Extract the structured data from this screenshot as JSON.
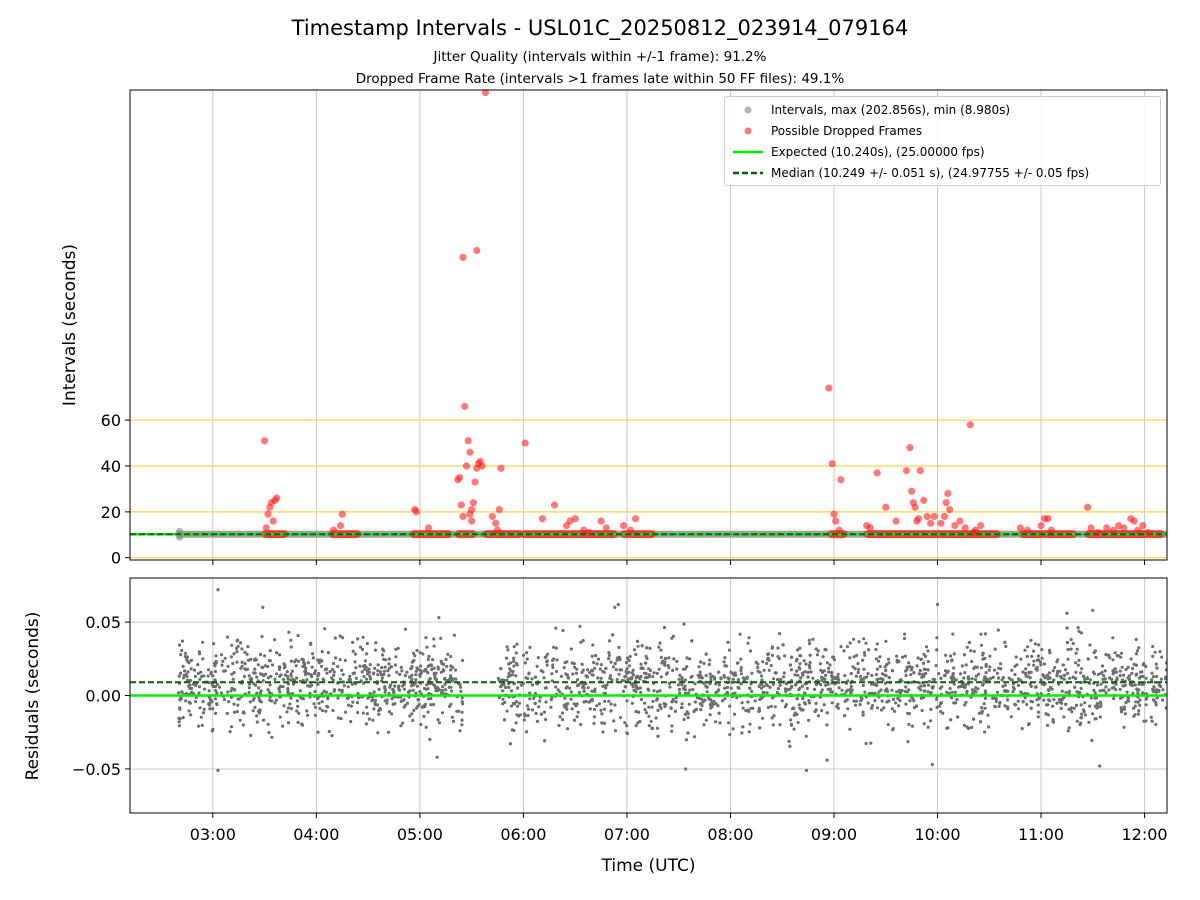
{
  "figure": {
    "title": "Timestamp Intervals - USL01C_20250812_023914_079164",
    "subtitle_1": "Jitter Quality (intervals within +/-1 frame): 91.2%",
    "subtitle_2": "Dropped Frame Rate (intervals >1 frames late within 50 FF files): 49.1%"
  },
  "colors": {
    "intervals": "#808080",
    "dropped": "#ff2020",
    "expected": "#00ee00",
    "median": "#006400",
    "threshold_lines": "#ffd24d",
    "grid": "#c8c8c8",
    "residual_points": "#6e6e6e"
  },
  "chart_data": [
    {
      "type": "scatter",
      "panel": "intervals",
      "ylabel": "Intervals (seconds)",
      "xlabel": "",
      "x_unit": "hours UTC",
      "xlim": [
        "02:12",
        "12:13"
      ],
      "ylim": [
        -1,
        204
      ],
      "yticks": [
        0,
        20,
        40,
        60
      ],
      "xticks": [
        "03:00",
        "04:00",
        "05:00",
        "06:00",
        "07:00",
        "08:00",
        "09:00",
        "10:00",
        "11:00",
        "12:00"
      ],
      "grid": "x",
      "threshold_lines": [
        0,
        20,
        40,
        60
      ],
      "legend_position": "upper right",
      "legend": [
        "Intervals, max (202.856s), min (8.980s)",
        "Possible Dropped Frames",
        "Expected (10.240s), (25.00000 fps)",
        "Median (10.249 +/- 0.051 s), (24.97755 +/- 0.05 fps)"
      ],
      "expected_value": 10.24,
      "median_value": 10.249,
      "interval_band": {
        "x_start": "02:39",
        "x_end": "12:13",
        "y": 10.25
      },
      "dropped_segments": [
        {
          "x_start": "03:30",
          "x_end": "03:42",
          "y": 10.3
        },
        {
          "x_start": "04:09",
          "x_end": "04:24",
          "y": 10.3
        },
        {
          "x_start": "04:56",
          "x_end": "05:17",
          "y": 10.3
        },
        {
          "x_start": "05:22",
          "x_end": "05:31",
          "y": 10.3
        },
        {
          "x_start": "05:38",
          "x_end": "05:58",
          "y": 10.3
        },
        {
          "x_start": "06:00",
          "x_end": "06:53",
          "y": 10.3
        },
        {
          "x_start": "06:58",
          "x_end": "07:15",
          "y": 10.3
        },
        {
          "x_start": "08:58",
          "x_end": "09:06",
          "y": 10.3
        },
        {
          "x_start": "09:19",
          "x_end": "10:35",
          "y": 10.3
        },
        {
          "x_start": "10:49",
          "x_end": "11:19",
          "y": 10.3
        },
        {
          "x_start": "11:27",
          "x_end": "12:10",
          "y": 10.3
        }
      ],
      "dropped_points": [
        [
          "03:30",
          51
        ],
        [
          "03:32",
          19
        ],
        [
          "03:33",
          22
        ],
        [
          "03:34",
          24
        ],
        [
          "03:35",
          16
        ],
        [
          "03:36",
          25
        ],
        [
          "03:37",
          26
        ],
        [
          "03:31",
          13
        ],
        [
          "04:15",
          19
        ],
        [
          "04:14",
          14
        ],
        [
          "04:10",
          12
        ],
        [
          "04:57",
          21
        ],
        [
          "04:58",
          20
        ],
        [
          "05:05",
          13
        ],
        [
          "05:22",
          34
        ],
        [
          "05:23",
          35
        ],
        [
          "05:24",
          23
        ],
        [
          "05:25",
          18
        ],
        [
          "05:26",
          66
        ],
        [
          "05:27",
          40
        ],
        [
          "05:28",
          51
        ],
        [
          "05:29",
          46
        ],
        [
          "05:30",
          21
        ],
        [
          "05:31",
          24
        ],
        [
          "05:32",
          33
        ],
        [
          "05:33",
          39
        ],
        [
          "05:34",
          41
        ],
        [
          "05:35",
          42
        ],
        [
          "05:36",
          40
        ],
        [
          "05:30",
          16
        ],
        [
          "05:29",
          19
        ],
        [
          "05:25",
          131
        ],
        [
          "05:33",
          134
        ],
        [
          "05:38",
          202.9
        ],
        [
          "05:42",
          18
        ],
        [
          "05:44",
          15
        ],
        [
          "05:46",
          21
        ],
        [
          "05:47",
          39
        ],
        [
          "05:45",
          12
        ],
        [
          "06:01",
          50
        ],
        [
          "06:11",
          17
        ],
        [
          "06:18",
          23
        ],
        [
          "06:25",
          14
        ],
        [
          "06:27",
          16
        ],
        [
          "06:30",
          17
        ],
        [
          "06:35",
          12
        ],
        [
          "06:38",
          11
        ],
        [
          "06:45",
          16
        ],
        [
          "06:48",
          13
        ],
        [
          "06:58",
          14
        ],
        [
          "07:05",
          17
        ],
        [
          "07:02",
          12
        ],
        [
          "08:57",
          74
        ],
        [
          "08:59",
          41
        ],
        [
          "09:00",
          19
        ],
        [
          "09:01",
          16
        ],
        [
          "09:04",
          34
        ],
        [
          "09:03",
          12
        ],
        [
          "09:19",
          14
        ],
        [
          "09:21",
          13
        ],
        [
          "09:25",
          37
        ],
        [
          "09:30",
          22
        ],
        [
          "09:36",
          16
        ],
        [
          "09:42",
          38
        ],
        [
          "09:44",
          48
        ],
        [
          "09:45",
          29
        ],
        [
          "09:46",
          24
        ],
        [
          "09:47",
          22
        ],
        [
          "09:48",
          16
        ],
        [
          "09:49",
          17
        ],
        [
          "09:50",
          38
        ],
        [
          "09:52",
          25
        ],
        [
          "09:54",
          18
        ],
        [
          "09:56",
          15
        ],
        [
          "09:58",
          18
        ],
        [
          "10:02",
          15
        ],
        [
          "10:04",
          18
        ],
        [
          "10:05",
          24
        ],
        [
          "10:06",
          28
        ],
        [
          "10:07",
          21
        ],
        [
          "10:10",
          14
        ],
        [
          "10:13",
          16
        ],
        [
          "10:16",
          13
        ],
        [
          "10:19",
          58
        ],
        [
          "10:22",
          12
        ],
        [
          "10:25",
          14
        ],
        [
          "10:21",
          11
        ],
        [
          "10:48",
          13
        ],
        [
          "10:52",
          12
        ],
        [
          "11:00",
          14
        ],
        [
          "11:02",
          17
        ],
        [
          "11:04",
          17
        ],
        [
          "11:06",
          12
        ],
        [
          "11:27",
          22
        ],
        [
          "11:29",
          13
        ],
        [
          "11:33",
          11
        ],
        [
          "11:38",
          13
        ],
        [
          "11:42",
          12
        ],
        [
          "11:45",
          14
        ],
        [
          "11:48",
          13
        ],
        [
          "11:52",
          17
        ],
        [
          "11:54",
          16
        ],
        [
          "11:56",
          12
        ],
        [
          "11:59",
          14
        ],
        [
          "12:02",
          11
        ]
      ],
      "series": [
        {
          "name": "Intervals, max (202.856s), min (8.980s)",
          "kind": "scatter"
        },
        {
          "name": "Possible Dropped Frames",
          "kind": "scatter"
        },
        {
          "name": "Expected (10.240s), (25.00000 fps)",
          "kind": "hline",
          "y": 10.24
        },
        {
          "name": "Median (10.249 +/- 0.051 s), (24.97755 +/- 0.05 fps)",
          "kind": "hline",
          "y": 10.249
        }
      ]
    },
    {
      "type": "scatter",
      "panel": "residuals",
      "ylabel": "Residuals (seconds)",
      "xlabel": "Time (UTC)",
      "xlim": [
        "02:12",
        "12:13"
      ],
      "ylim": [
        -0.08,
        0.08
      ],
      "yticks": [
        -0.05,
        0.0,
        0.05
      ],
      "ytick_labels": [
        "−0.05",
        "0.00",
        "0.05"
      ],
      "xticks": [
        "03:00",
        "04:00",
        "05:00",
        "06:00",
        "07:00",
        "08:00",
        "09:00",
        "10:00",
        "11:00",
        "12:00"
      ],
      "grid": "both",
      "expected_line": 0.0,
      "median_line": 0.009,
      "data_ranges": [
        {
          "x_start": "02:40",
          "x_end": "05:25"
        },
        {
          "x_start": "05:45",
          "x_end": "12:13"
        }
      ],
      "residual_center": 0.008,
      "residual_spread": 0.02,
      "point_count_approx": 2600,
      "extreme_points": [
        [
          "03:03",
          0.072
        ],
        [
          "03:03",
          -0.051
        ],
        [
          "03:29",
          0.06
        ],
        [
          "06:55",
          0.062
        ],
        [
          "06:53",
          0.06
        ],
        [
          "07:34",
          -0.05
        ],
        [
          "08:44",
          -0.051
        ],
        [
          "08:56",
          -0.044
        ],
        [
          "10:00",
          0.062
        ],
        [
          "09:57",
          -0.047
        ],
        [
          "11:34",
          -0.048
        ],
        [
          "11:30",
          0.058
        ],
        [
          "11:15",
          0.056
        ],
        [
          "05:11",
          0.053
        ],
        [
          "05:10",
          -0.042
        ]
      ]
    }
  ]
}
